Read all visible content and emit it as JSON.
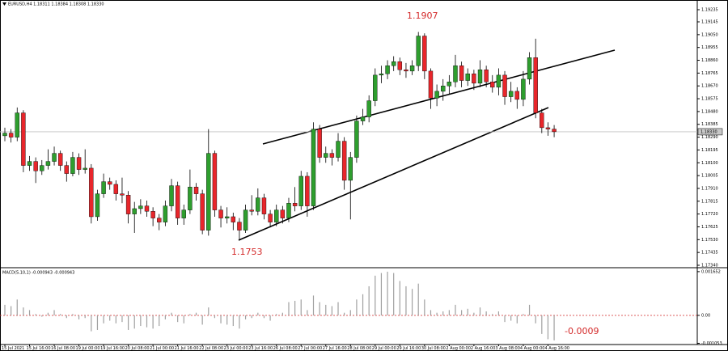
{
  "chart_data": [
    {
      "type": "candlestick",
      "title": "EURUSD,H4 1.18311 1.18384 1.18308 1.18330",
      "up_color": "#2e9e2e",
      "down_color": "#e8262b",
      "ylim": [
        1.17328,
        1.19277
      ],
      "yticks": [
        {
          "value": 1.1734,
          "label": "1.17340"
        },
        1.17435,
        {
          "value": 1.1753,
          "label": "1.17530"
        },
        1.17625,
        {
          "value": 1.1772,
          "label": "1.17720"
        },
        1.17815,
        {
          "value": 1.1791,
          "label": "1.17910"
        },
        1.18005,
        {
          "value": 1.181,
          "label": "1.18100"
        },
        1.18195,
        {
          "value": 1.1829,
          "label": "1.18290"
        },
        1.18385,
        {
          "value": 1.1848,
          "label": "1.18480"
        },
        1.18575,
        {
          "value": 1.1867,
          "label": "1.18670"
        },
        1.18765,
        {
          "value": 1.1886,
          "label": "1.18860"
        },
        1.18955,
        {
          "value": 1.1905,
          "label": "1.19050"
        },
        1.19145,
        1.19235
      ],
      "grid": false,
      "price_label": {
        "value": 1.1833,
        "label": "1.18330"
      },
      "annotations": [
        {
          "value": 1.1907,
          "label": "1.1907"
        },
        {
          "value": 1.1753,
          "label": "1.1753"
        }
      ],
      "ohlc": [
        [
          1.183,
          1.1836,
          1.1826,
          1.1832
        ],
        [
          1.1832,
          1.1835,
          1.1825,
          1.1829
        ],
        [
          1.1829,
          1.1851,
          1.1826,
          1.1847
        ],
        [
          1.1847,
          1.1849,
          1.1803,
          1.1808
        ],
        [
          1.1808,
          1.1815,
          1.1804,
          1.1811
        ],
        [
          1.1811,
          1.1814,
          1.1795,
          1.1804
        ],
        [
          1.1804,
          1.1812,
          1.1801,
          1.1808
        ],
        [
          1.1808,
          1.182,
          1.1805,
          1.1811
        ],
        [
          1.1811,
          1.1822,
          1.1808,
          1.1817
        ],
        [
          1.1817,
          1.1819,
          1.1804,
          1.1808
        ],
        [
          1.1808,
          1.1811,
          1.1796,
          1.1802
        ],
        [
          1.1802,
          1.1818,
          1.18,
          1.1814
        ],
        [
          1.1814,
          1.1817,
          1.1801,
          1.1805
        ],
        [
          1.1805,
          1.182,
          1.1802,
          1.1806
        ],
        [
          1.1806,
          1.1809,
          1.1765,
          1.177
        ],
        [
          1.177,
          1.179,
          1.1767,
          1.1787
        ],
        [
          1.1787,
          1.1802,
          1.1784,
          1.1796
        ],
        [
          1.1796,
          1.1799,
          1.179,
          1.1794
        ],
        [
          1.1794,
          1.1797,
          1.1782,
          1.1787
        ],
        [
          1.1787,
          1.1799,
          1.178,
          1.1786
        ],
        [
          1.1786,
          1.1789,
          1.1765,
          1.1772
        ],
        [
          1.1772,
          1.1781,
          1.1758,
          1.1776
        ],
        [
          1.1776,
          1.1783,
          1.1772,
          1.1778
        ],
        [
          1.1778,
          1.1782,
          1.177,
          1.1774
        ],
        [
          1.1774,
          1.1777,
          1.1763,
          1.1769
        ],
        [
          1.1769,
          1.1772,
          1.176,
          1.1766
        ],
        [
          1.1766,
          1.1782,
          1.1763,
          1.1778
        ],
        [
          1.1778,
          1.1798,
          1.1774,
          1.1793
        ],
        [
          1.1793,
          1.1796,
          1.1764,
          1.1769
        ],
        [
          1.1769,
          1.1779,
          1.1764,
          1.1775
        ],
        [
          1.1775,
          1.1805,
          1.1772,
          1.1792
        ],
        [
          1.1792,
          1.1795,
          1.1782,
          1.1787
        ],
        [
          1.1787,
          1.179,
          1.1757,
          1.176
        ],
        [
          1.176,
          1.1835,
          1.1756,
          1.1817
        ],
        [
          1.1817,
          1.1819,
          1.177,
          1.1775
        ],
        [
          1.1775,
          1.1778,
          1.1762,
          1.1769
        ],
        [
          1.1769,
          1.1777,
          1.1765,
          1.177
        ],
        [
          1.177,
          1.1773,
          1.176,
          1.1766
        ],
        [
          1.1766,
          1.1769,
          1.1753,
          1.176
        ],
        [
          1.176,
          1.1779,
          1.1758,
          1.1775
        ],
        [
          1.1775,
          1.1786,
          1.1771,
          1.1774
        ],
        [
          1.1774,
          1.1791,
          1.1771,
          1.1784
        ],
        [
          1.1784,
          1.1787,
          1.1768,
          1.1772
        ],
        [
          1.1772,
          1.1775,
          1.1762,
          1.1766
        ],
        [
          1.1766,
          1.1779,
          1.1763,
          1.1775
        ],
        [
          1.1775,
          1.1778,
          1.1765,
          1.1769
        ],
        [
          1.1769,
          1.1784,
          1.1766,
          1.178
        ],
        [
          1.178,
          1.1792,
          1.1774,
          1.1778
        ],
        [
          1.1778,
          1.1804,
          1.1775,
          1.18
        ],
        [
          1.18,
          1.1803,
          1.177,
          1.1778
        ],
        [
          1.1778,
          1.184,
          1.1775,
          1.1835
        ],
        [
          1.1835,
          1.1838,
          1.181,
          1.1814
        ],
        [
          1.1814,
          1.1822,
          1.181,
          1.1817
        ],
        [
          1.1817,
          1.182,
          1.1808,
          1.1814
        ],
        [
          1.1814,
          1.1832,
          1.1811,
          1.1826
        ],
        [
          1.1826,
          1.1829,
          1.179,
          1.1797
        ],
        [
          1.1797,
          1.1818,
          1.1768,
          1.1814
        ],
        [
          1.1814,
          1.1845,
          1.181,
          1.1841
        ],
        [
          1.1841,
          1.185,
          1.1838,
          1.1844
        ],
        [
          1.1844,
          1.186,
          1.184,
          1.1856
        ],
        [
          1.1856,
          1.188,
          1.1852,
          1.1875
        ],
        [
          1.1875,
          1.1882,
          1.1869,
          1.1876
        ],
        [
          1.1876,
          1.1886,
          1.1872,
          1.1882
        ],
        [
          1.1882,
          1.1889,
          1.1878,
          1.1885
        ],
        [
          1.1885,
          1.1888,
          1.1875,
          1.1879
        ],
        [
          1.1879,
          1.1884,
          1.1873,
          1.1878
        ],
        [
          1.1878,
          1.1886,
          1.1875,
          1.1882
        ],
        [
          1.1882,
          1.1907,
          1.1878,
          1.1904
        ],
        [
          1.1904,
          1.1906,
          1.1872,
          1.1878
        ],
        [
          1.1878,
          1.188,
          1.185,
          1.1858
        ],
        [
          1.1858,
          1.1868,
          1.1852,
          1.1863
        ],
        [
          1.1863,
          1.1872,
          1.1856,
          1.1867
        ],
        [
          1.1867,
          1.1875,
          1.1861,
          1.187
        ],
        [
          1.187,
          1.189,
          1.1866,
          1.1882
        ],
        [
          1.1882,
          1.1885,
          1.1866,
          1.1871
        ],
        [
          1.1871,
          1.188,
          1.1867,
          1.1876
        ],
        [
          1.1876,
          1.1879,
          1.1864,
          1.1869
        ],
        [
          1.1869,
          1.1886,
          1.1866,
          1.1879
        ],
        [
          1.1879,
          1.1882,
          1.1866,
          1.187
        ],
        [
          1.187,
          1.1875,
          1.1862,
          1.1866
        ],
        [
          1.1866,
          1.188,
          1.186,
          1.1875
        ],
        [
          1.1875,
          1.1878,
          1.1853,
          1.1859
        ],
        [
          1.1859,
          1.187,
          1.1855,
          1.1863
        ],
        [
          1.1863,
          1.1866,
          1.185,
          1.1857
        ],
        [
          1.1857,
          1.1878,
          1.1852,
          1.1872
        ],
        [
          1.1872,
          1.1892,
          1.1868,
          1.1888
        ],
        [
          1.1888,
          1.1902,
          1.1843,
          1.1847
        ],
        [
          1.1847,
          1.185,
          1.1832,
          1.1836
        ],
        [
          1.1836,
          1.184,
          1.183,
          1.1835
        ],
        [
          1.1835,
          1.1838,
          1.1829,
          1.1833
        ]
      ]
    },
    {
      "type": "bar",
      "title": "MACD(5,10,1) -0.000943 -0.000943",
      "color": "#a0a0a0",
      "zero_color": "#d42a2a",
      "ylim": [
        -0.00107,
        0.00174
      ],
      "yticks": [
        -0.001053,
        {
          "value": 0,
          "label": "0.00"
        },
        0.001652
      ],
      "value_label": {
        "value": -0.0009,
        "label": "-0.0009"
      },
      "categories": [
        "15 Jul 2021",
        null,
        null,
        null,
        "15 Jul 16:00",
        null,
        null,
        null,
        "16 Jul 08:00",
        null,
        null,
        null,
        "19 Jul 00:00",
        null,
        null,
        null,
        "19 Jul 16:00",
        null,
        null,
        null,
        "20 Jul 08:00",
        null,
        null,
        null,
        "21 Jul 00:00",
        null,
        null,
        null,
        "21 Jul 16:00",
        null,
        null,
        null,
        "22 Jul 08:00",
        null,
        null,
        null,
        "23 Jul 00:00",
        null,
        null,
        null,
        "23 Jul 16:00",
        null,
        null,
        null,
        "26 Jul 08:00",
        null,
        null,
        null,
        "27 Jul 00:00",
        null,
        null,
        null,
        "27 Jul 16:00",
        null,
        null,
        null,
        "28 Jul 08:00",
        null,
        null,
        null,
        "29 Jul 00:00",
        null,
        null,
        null,
        "29 Jul 16:00",
        null,
        null,
        null,
        "30 Jul 08:00",
        null,
        null,
        null,
        "2 Aug 00:00",
        null,
        null,
        null,
        "2 Aug 16:00",
        null,
        null,
        null,
        "3 Aug 08:00",
        null,
        null,
        null,
        "4 Aug 00:00",
        null,
        null,
        null,
        "4 Aug 16:00",
        null
      ],
      "values": [
        0.0004,
        0.00035,
        0.0006,
        0.0003,
        0.0002,
        5e-05,
        -5e-05,
        0.0001,
        0.0002,
        5e-05,
        -0.0001,
        5e-05,
        -0.00015,
        -0.0001,
        -0.0006,
        -0.00055,
        -0.0003,
        -0.0002,
        -0.0003,
        -0.00025,
        -0.00055,
        -0.0005,
        -0.0004,
        -0.00045,
        -0.0005,
        -0.0004,
        -0.00015,
        0.0001,
        -0.00025,
        -0.0003,
        5e-05,
        0.0001,
        -0.00035,
        0.0003,
        -0.0001,
        -0.0003,
        -0.00035,
        -0.0004,
        -0.0005,
        -0.00015,
        -0.0001,
        0.0001,
        -0.0001,
        -0.0002,
        5e-05,
        0.0001,
        0.0005,
        0.00055,
        0.0006,
        0.0002,
        0.00075,
        0.0005,
        0.0004,
        0.00035,
        0.0005,
        0.0001,
        0.0002,
        0.0006,
        0.0008,
        0.0011,
        0.0015,
        0.0016,
        0.00165,
        0.0016,
        0.0013,
        0.0011,
        0.001,
        0.0012,
        0.0006,
        0.0002,
        0.0001,
        0.00015,
        0.0002,
        0.0004,
        0.0002,
        0.00025,
        0.0001,
        0.0003,
        0.00015,
        5e-05,
        0.00015,
        -0.00025,
        -0.0002,
        -0.0003,
        5e-05,
        0.0004,
        -0.0003,
        -0.0007,
        -0.0009,
        -0.000943
      ]
    }
  ]
}
